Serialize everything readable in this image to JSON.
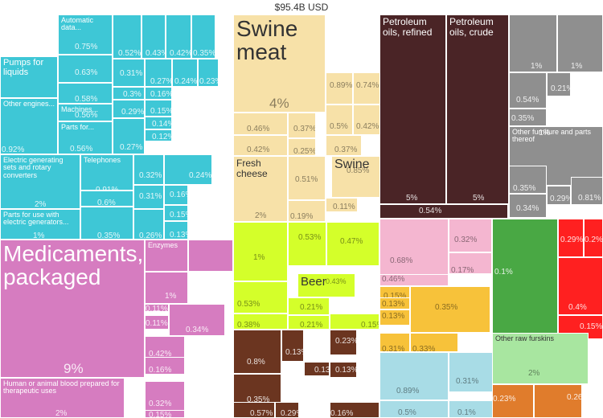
{
  "title": "$95.4B USD",
  "palette": {
    "machinery": "#3ec7d6",
    "food": "#f7e1a8",
    "petroleum": "#4a2426",
    "furniture": "#8f8f8f",
    "pharma": "#d67cc0",
    "beverages": "#d4ff2a",
    "wood": "#6b3520",
    "plastics": "#f4b6d0",
    "chemicals": "#f7c23a",
    "metals": "#a8dce6",
    "leather": "#a8e6a0",
    "vegetables": "#49a844",
    "animal": "#ff2020",
    "minerals": "#e07c2c"
  },
  "chart_data": {
    "type": "treemap",
    "title": "$95.4B USD",
    "unit": "share of total exports (%)",
    "items": [
      {
        "label": "",
        "group": "machinery",
        "value": 1
      },
      {
        "label": "Automatic data...",
        "group": "machinery",
        "value": 0.75
      },
      {
        "label": "Pumps for liquids",
        "group": "machinery",
        "value": 1
      },
      {
        "label": "",
        "group": "machinery",
        "value": 0.63
      },
      {
        "label": "",
        "group": "machinery",
        "value": 0.58
      },
      {
        "label": "Machines...",
        "group": "machinery",
        "value": 0.56
      },
      {
        "label": "Other engines...",
        "group": "machinery",
        "value": 0.92
      },
      {
        "label": "Parts for...",
        "group": "machinery",
        "value": 0.56
      },
      {
        "label": "Electric generating sets and rotary converters",
        "group": "machinery",
        "value": 2
      },
      {
        "label": "Telephones",
        "group": "machinery",
        "value": 0.91
      },
      {
        "label": "",
        "group": "machinery",
        "value": 0.6
      },
      {
        "label": "Parts for use with electric generators...",
        "group": "machinery",
        "value": 1
      },
      {
        "label": "",
        "group": "machinery",
        "value": 0.35
      },
      {
        "label": "",
        "group": "machinery",
        "value": 0.52
      },
      {
        "label": "",
        "group": "machinery",
        "value": 0.43
      },
      {
        "label": "",
        "group": "machinery",
        "value": 0.42
      },
      {
        "label": "",
        "group": "machinery",
        "value": 0.35
      },
      {
        "label": "",
        "group": "machinery",
        "value": 0.31
      },
      {
        "label": "",
        "group": "machinery",
        "value": 0.27
      },
      {
        "label": "",
        "group": "machinery",
        "value": 0.24
      },
      {
        "label": "",
        "group": "machinery",
        "value": 0.23
      },
      {
        "label": "",
        "group": "machinery",
        "value": 0.3
      },
      {
        "label": "",
        "group": "machinery",
        "value": 0.16
      },
      {
        "label": "",
        "group": "machinery",
        "value": 0.29
      },
      {
        "label": "",
        "group": "machinery",
        "value": 0.15
      },
      {
        "label": "",
        "group": "machinery",
        "value": 0.14
      },
      {
        "label": "",
        "group": "machinery",
        "value": 0.12
      },
      {
        "label": "",
        "group": "machinery",
        "value": 0.27
      },
      {
        "label": "",
        "group": "machinery",
        "value": 0.32
      },
      {
        "label": "",
        "group": "machinery",
        "value": 0.31
      },
      {
        "label": "",
        "group": "machinery",
        "value": 0.24
      },
      {
        "label": "",
        "group": "machinery",
        "value": 0.16
      },
      {
        "label": "",
        "group": "machinery",
        "value": 0.15
      },
      {
        "label": "",
        "group": "machinery",
        "value": 0.26
      },
      {
        "label": "",
        "group": "machinery",
        "value": 0.13
      },
      {
        "label": "Swine meat",
        "group": "food",
        "value": 4
      },
      {
        "label": "",
        "group": "food",
        "value": 0.89
      },
      {
        "label": "",
        "group": "food",
        "value": 0.74
      },
      {
        "label": "",
        "group": "food",
        "value": 0.46
      },
      {
        "label": "",
        "group": "food",
        "value": 0.37
      },
      {
        "label": "",
        "group": "food",
        "value": 0.5
      },
      {
        "label": "",
        "group": "food",
        "value": 0.42
      },
      {
        "label": "",
        "group": "food",
        "value": 0.42
      },
      {
        "label": "",
        "group": "food",
        "value": 0.25
      },
      {
        "label": "",
        "group": "food",
        "value": 0.37
      },
      {
        "label": "Fresh cheese",
        "group": "food",
        "value": 2
      },
      {
        "label": "Swine",
        "group": "food",
        "value": 0.85
      },
      {
        "label": "",
        "group": "food",
        "value": 0.51
      },
      {
        "label": "",
        "group": "food",
        "value": 0.19
      },
      {
        "label": "",
        "group": "food",
        "value": 0.11
      },
      {
        "label": "Petroleum oils, refined",
        "group": "petroleum",
        "value": 5
      },
      {
        "label": "Petroleum oils, crude",
        "group": "petroleum",
        "value": 5
      },
      {
        "label": "",
        "group": "petroleum",
        "value": 0.54
      },
      {
        "label": "",
        "group": "furniture",
        "value": 1
      },
      {
        "label": "",
        "group": "furniture",
        "value": 1
      },
      {
        "label": "",
        "group": "furniture",
        "value": 0.21
      },
      {
        "label": "",
        "group": "furniture",
        "value": 0.54
      },
      {
        "label": "",
        "group": "furniture",
        "value": 0.35
      },
      {
        "label": "Other furniture and parts thereof",
        "group": "furniture",
        "value": 1
      },
      {
        "label": "",
        "group": "furniture",
        "value": 0.35
      },
      {
        "label": "",
        "group": "furniture",
        "value": 0.29
      },
      {
        "label": "",
        "group": "furniture",
        "value": 0.81
      },
      {
        "label": "",
        "group": "furniture",
        "value": 0.34
      },
      {
        "label": "Medicaments, packaged",
        "group": "pharma",
        "value": 9
      },
      {
        "label": "Enzymes",
        "group": "pharma",
        "value": 0.36
      },
      {
        "label": "",
        "group": "pharma",
        "value": 0.35
      },
      {
        "label": "",
        "group": "pharma",
        "value": 1
      },
      {
        "label": "",
        "group": "pharma",
        "value": 0.11
      },
      {
        "label": "",
        "group": "pharma",
        "value": 0.34
      },
      {
        "label": "",
        "group": "pharma",
        "value": 0.11
      },
      {
        "label": "",
        "group": "pharma",
        "value": 0.42
      },
      {
        "label": "",
        "group": "pharma",
        "value": 0.16
      },
      {
        "label": "Human or animal blood prepared for therapeutic uses",
        "group": "pharma",
        "value": 2
      },
      {
        "label": "",
        "group": "pharma",
        "value": 0.32
      },
      {
        "label": "",
        "group": "pharma",
        "value": 0.15
      },
      {
        "label": "Beer",
        "group": "beverages",
        "value": 0.43
      },
      {
        "label": "",
        "group": "beverages",
        "value": 1
      },
      {
        "label": "",
        "group": "beverages",
        "value": 0.53
      },
      {
        "label": "",
        "group": "beverages",
        "value": 0.47
      },
      {
        "label": "",
        "group": "beverages",
        "value": 0.53
      },
      {
        "label": "",
        "group": "beverages",
        "value": 0.21
      },
      {
        "label": "",
        "group": "beverages",
        "value": 0.38
      },
      {
        "label": "",
        "group": "beverages",
        "value": 0.21
      },
      {
        "label": "",
        "group": "beverages",
        "value": 0.15
      },
      {
        "label": "",
        "group": "wood",
        "value": 0.8
      },
      {
        "label": "",
        "group": "wood",
        "value": 0.13
      },
      {
        "label": "",
        "group": "wood",
        "value": 0.23
      },
      {
        "label": "",
        "group": "wood",
        "value": 0.13
      },
      {
        "label": "",
        "group": "wood",
        "value": 0.13
      },
      {
        "label": "",
        "group": "wood",
        "value": 0.35
      },
      {
        "label": "",
        "group": "wood",
        "value": 0.57
      },
      {
        "label": "",
        "group": "wood",
        "value": 0.29
      },
      {
        "label": "",
        "group": "wood",
        "value": 0.16
      },
      {
        "label": "",
        "group": "plastics",
        "value": 0.68
      },
      {
        "label": "",
        "group": "plastics",
        "value": 0.32
      },
      {
        "label": "",
        "group": "plastics",
        "value": 0.17
      },
      {
        "label": "",
        "group": "plastics",
        "value": 0.46
      },
      {
        "label": "",
        "group": "chemicals",
        "value": 0.15
      },
      {
        "label": "",
        "group": "chemicals",
        "value": 0.13
      },
      {
        "label": "",
        "group": "chemicals",
        "value": 0.35
      },
      {
        "label": "",
        "group": "chemicals",
        "value": 0.13
      },
      {
        "label": "",
        "group": "chemicals",
        "value": 0.31
      },
      {
        "label": "",
        "group": "chemicals",
        "value": 0.33
      },
      {
        "label": "",
        "group": "metals",
        "value": 0.89
      },
      {
        "label": "",
        "group": "metals",
        "value": 0.31
      },
      {
        "label": "",
        "group": "metals",
        "value": 0.5
      },
      {
        "label": "",
        "group": "metals",
        "value": 0.1
      },
      {
        "label": "",
        "group": "vegetables",
        "value": 0.1
      },
      {
        "label": "",
        "group": "animal",
        "value": 0.29
      },
      {
        "label": "",
        "group": "animal",
        "value": 0.2
      },
      {
        "label": "",
        "group": "animal",
        "value": 0.4
      },
      {
        "label": "",
        "group": "animal",
        "value": 0.15
      },
      {
        "label": "Other raw furskins",
        "group": "leather",
        "value": 2
      },
      {
        "label": "",
        "group": "minerals",
        "value": 0.23
      },
      {
        "label": "",
        "group": "minerals",
        "value": 0.26
      }
    ]
  }
}
